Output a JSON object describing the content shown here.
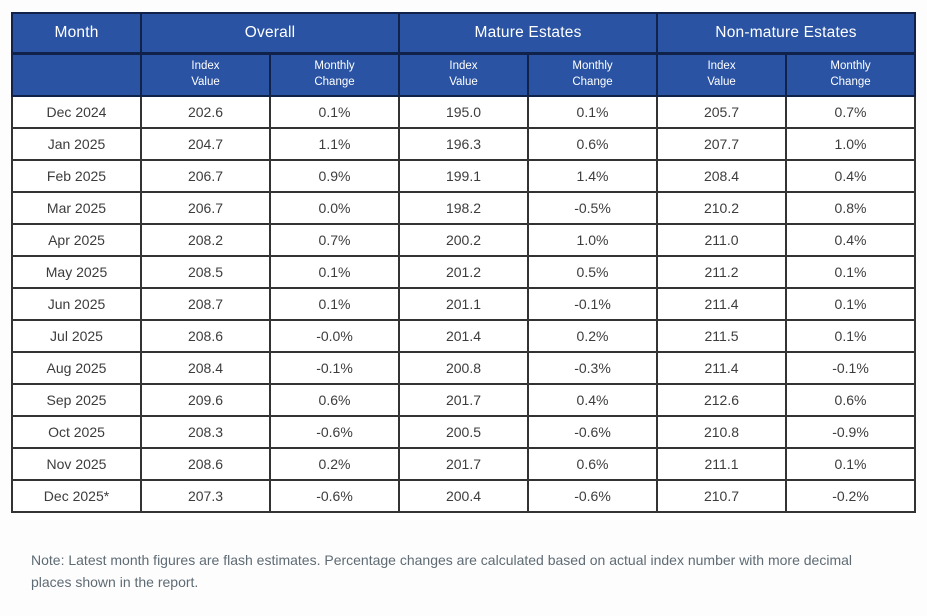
{
  "table": {
    "month_label": "Month",
    "groups": [
      "Overall",
      "Mature Estates",
      "Non-mature Estates"
    ],
    "sub_index": "Index\nValue",
    "sub_change": "Monthly\nChange"
  },
  "chart_data": {
    "type": "table",
    "column_groups": [
      "Month",
      "Overall",
      "Mature Estates",
      "Non-mature Estates"
    ],
    "columns": [
      "Month",
      "Overall Index Value",
      "Overall Monthly Change",
      "Mature Estates Index Value",
      "Mature Estates Monthly Change",
      "Non-mature Estates Index Value",
      "Non-mature Estates Monthly Change"
    ],
    "rows": [
      [
        "Dec 2024",
        "202.6",
        "0.1%",
        "195.0",
        "0.1%",
        "205.7",
        "0.7%"
      ],
      [
        "Jan 2025",
        "204.7",
        "1.1%",
        "196.3",
        "0.6%",
        "207.7",
        "1.0%"
      ],
      [
        "Feb 2025",
        "206.7",
        "0.9%",
        "199.1",
        "1.4%",
        "208.4",
        "0.4%"
      ],
      [
        "Mar 2025",
        "206.7",
        "0.0%",
        "198.2",
        "-0.5%",
        "210.2",
        "0.8%"
      ],
      [
        "Apr 2025",
        "208.2",
        "0.7%",
        "200.2",
        "1.0%",
        "211.0",
        "0.4%"
      ],
      [
        "May 2025",
        "208.5",
        "0.1%",
        "201.2",
        "0.5%",
        "211.2",
        "0.1%"
      ],
      [
        "Jun 2025",
        "208.7",
        "0.1%",
        "201.1",
        "-0.1%",
        "211.4",
        "0.1%"
      ],
      [
        "Jul 2025",
        "208.6",
        "-0.0%",
        "201.4",
        "0.2%",
        "211.5",
        "0.1%"
      ],
      [
        "Aug 2025",
        "208.4",
        "-0.1%",
        "200.8",
        "-0.3%",
        "211.4",
        "-0.1%"
      ],
      [
        "Sep 2025",
        "209.6",
        "0.6%",
        "201.7",
        "0.4%",
        "212.6",
        "0.6%"
      ],
      [
        "Oct 2025",
        "208.3",
        "-0.6%",
        "200.5",
        "-0.6%",
        "210.8",
        "-0.9%"
      ],
      [
        "Nov 2025",
        "208.6",
        "0.2%",
        "201.7",
        "0.6%",
        "211.1",
        "0.1%"
      ],
      [
        "Dec 2025*",
        "207.3",
        "-0.6%",
        "200.4",
        "-0.6%",
        "210.7",
        "-0.2%"
      ]
    ]
  },
  "colors": {
    "header_bg": "#2a53a3",
    "header_border": "#10214a",
    "grid": "#333333",
    "data_text": "#3c3c3c",
    "note_text": "#5e6b74"
  },
  "note": "Note: Latest month figures are flash estimates. Percentage changes are calculated based on actual index number with more decimal places shown in the report."
}
